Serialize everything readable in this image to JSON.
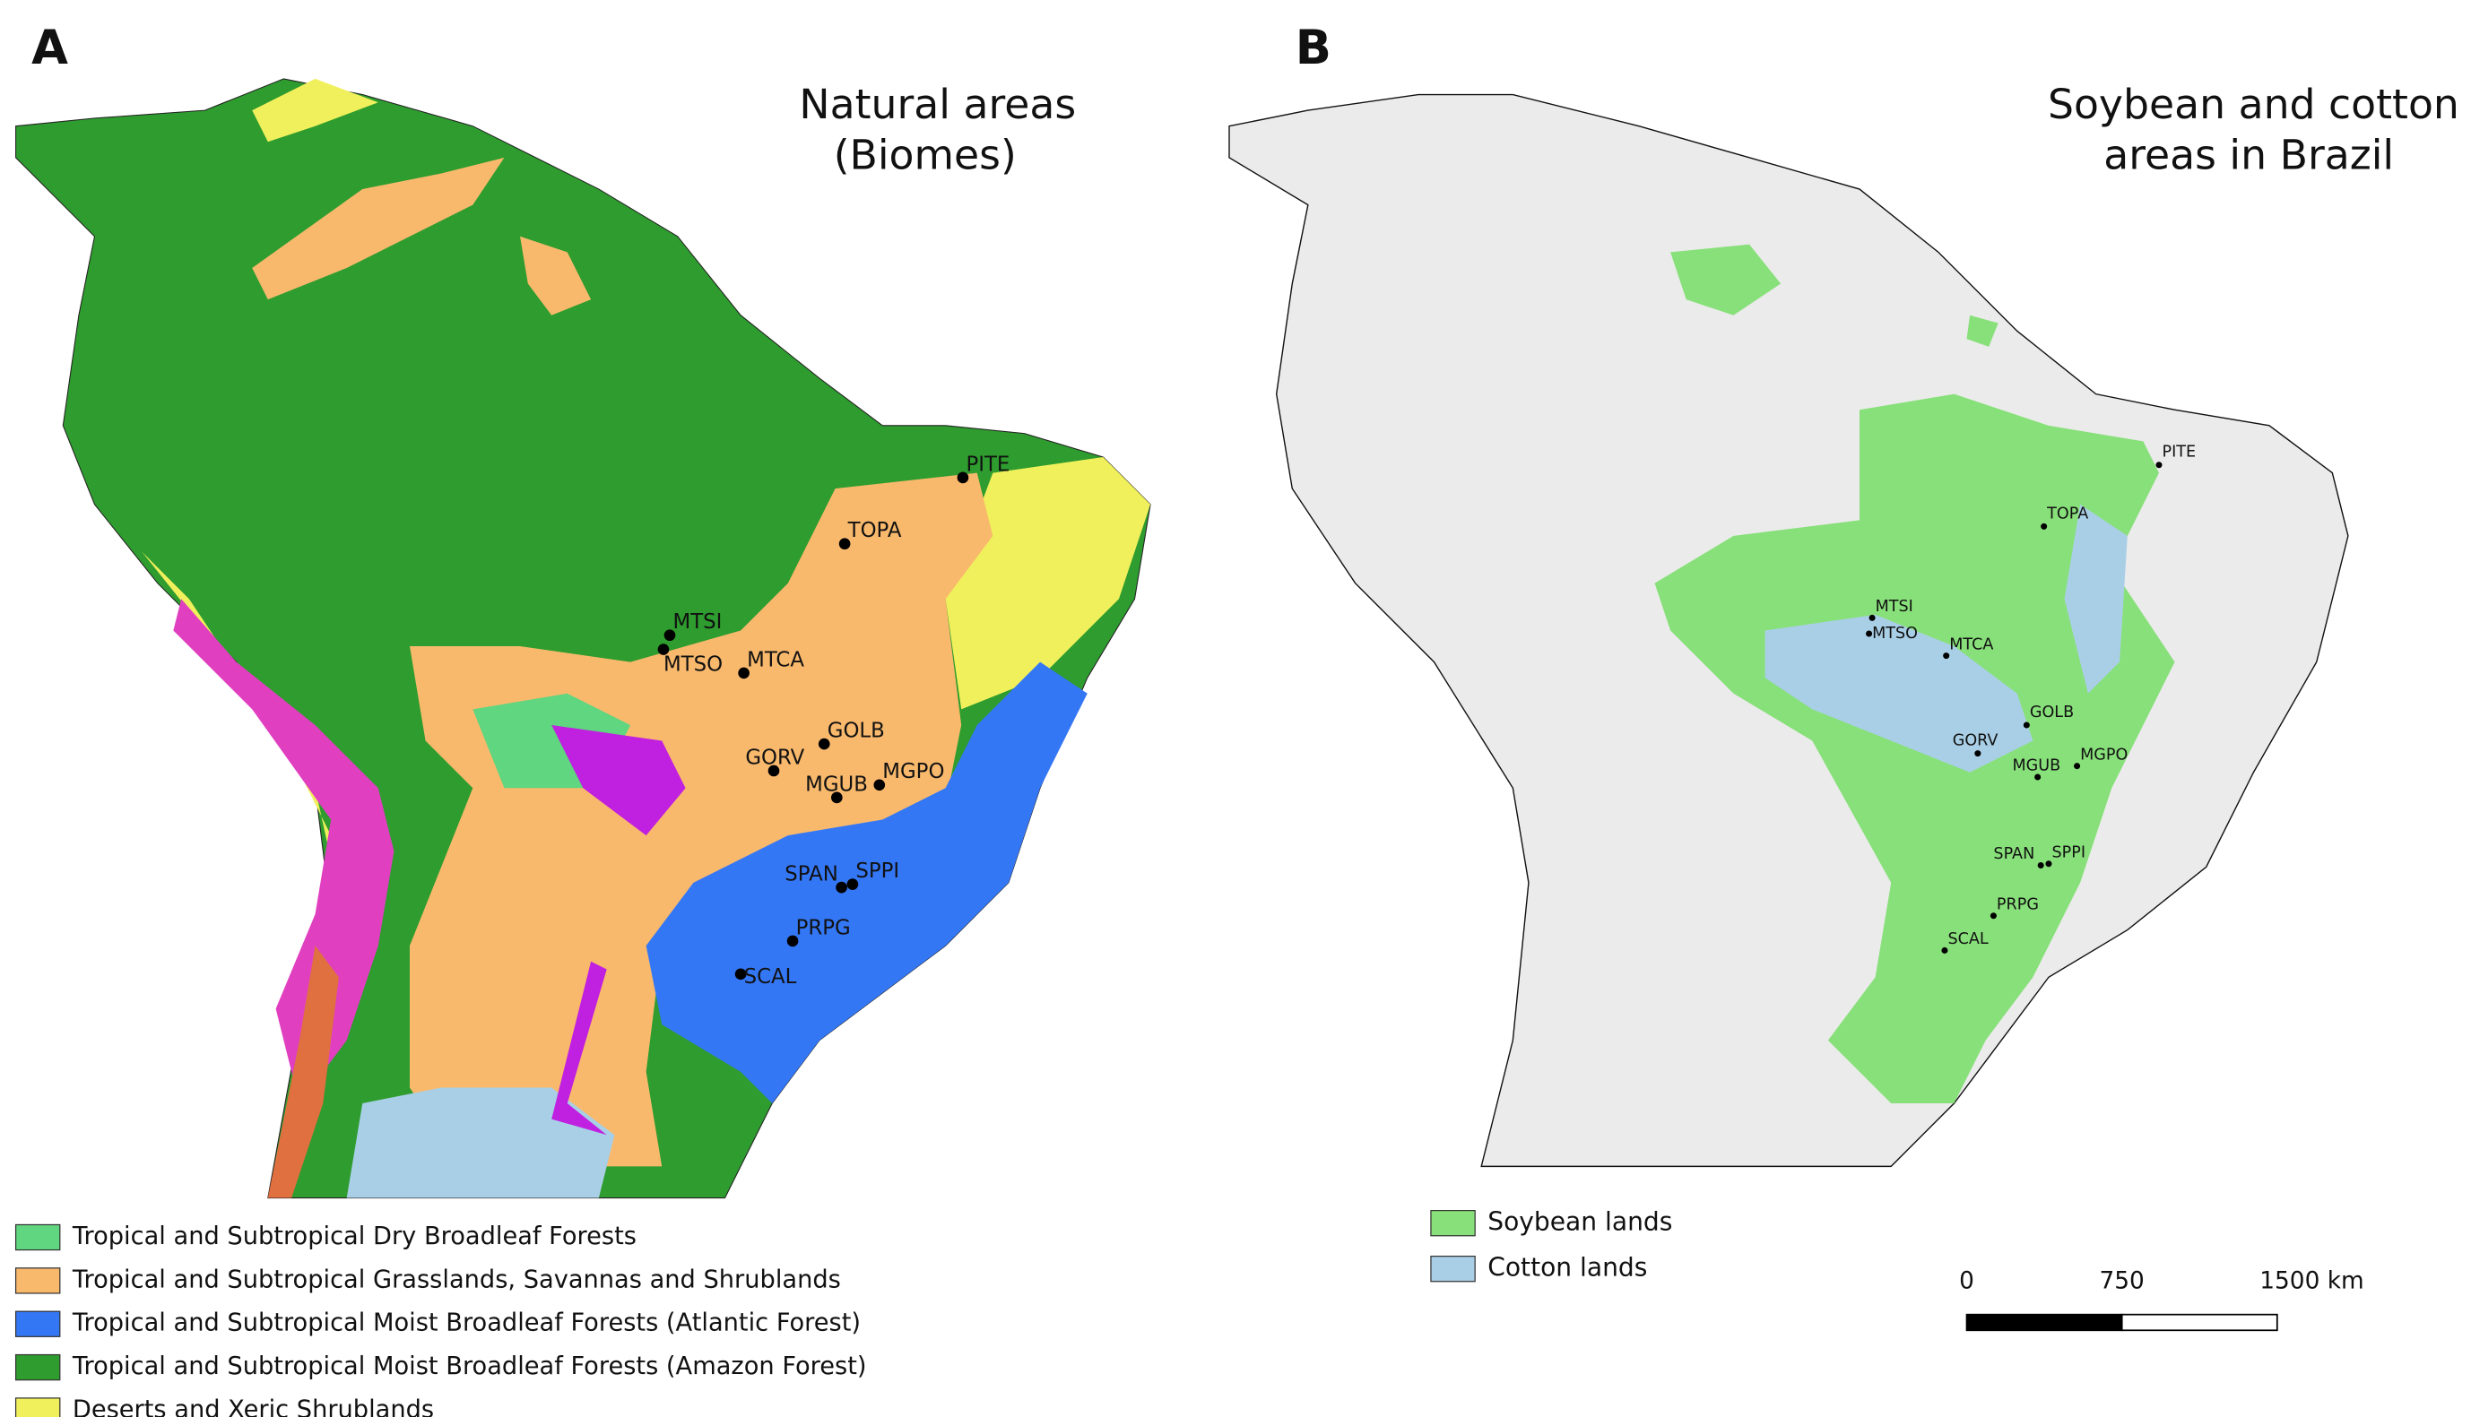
{
  "panels": [
    {
      "letter": "A",
      "title": [
        "Natural areas",
        "(Biomes)"
      ],
      "sites": [
        "PITE",
        "TOPA",
        "MTSI",
        "MTSO",
        "MTCA",
        "GOLB",
        "GORV",
        "MGUB",
        "MGPO",
        "SPAN",
        "SPPI",
        "PRPG",
        "SCAL"
      ],
      "legend": [
        {
          "label": "Tropical and Subtropical Dry Broadleaf Forests",
          "color": "#5fd67f"
        },
        {
          "label": "Tropical and Subtropical Grasslands, Savannas and Shrublands",
          "color": "#f9b96d"
        },
        {
          "label": "Tropical and Subtropical Moist Broadleaf Forests (Atlantic Forest)",
          "color": "#3477f5"
        },
        {
          "label": "Tropical and Subtropical Moist Broadleaf Forests (Amazon Forest)",
          "color": "#2e9c2e"
        },
        {
          "label": "Deserts and Xeric Shrublands",
          "color": "#f0f05c"
        }
      ]
    },
    {
      "letter": "B",
      "title": [
        "Soybean and cotton",
        "areas in Brazil"
      ],
      "sites": [
        "PITE",
        "TOPA",
        "MTSI",
        "MTSO",
        "MTCA",
        "GOLB",
        "GORV",
        "MGUB",
        "MGPO",
        "SPAN",
        "SPPI",
        "PRPG",
        "SCAL"
      ],
      "legend": [
        {
          "label": "Soybean lands",
          "color": "#88e07a"
        },
        {
          "label": "Cotton lands",
          "color": "#a9cfe6"
        }
      ],
      "scale_bar": [
        "0",
        "750",
        "1500 km"
      ]
    }
  ]
}
